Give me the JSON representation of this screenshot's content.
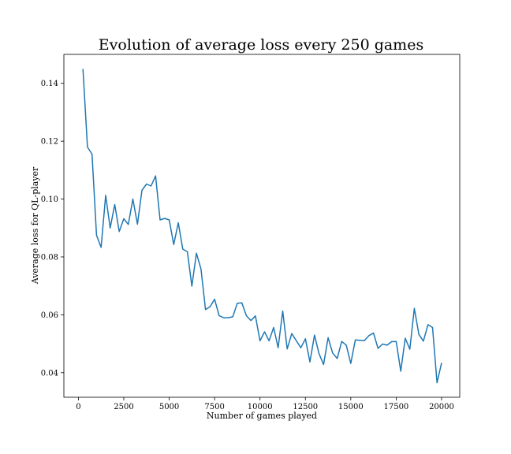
{
  "chart_data": {
    "type": "line",
    "title": "Evolution of average loss every 250 games",
    "xlabel": "Number of games played",
    "ylabel": "Average loss for QL-player",
    "xlim": [
      -800,
      21000
    ],
    "ylim": [
      0.0315,
      0.15
    ],
    "xticks": [
      0,
      2500,
      5000,
      7500,
      10000,
      12500,
      15000,
      17500,
      20000
    ],
    "xtick_labels": [
      "0",
      "2500",
      "5000",
      "7500",
      "10000",
      "12500",
      "15000",
      "17500",
      "20000"
    ],
    "yticks": [
      0.04,
      0.06,
      0.08,
      0.1,
      0.12,
      0.14
    ],
    "ytick_labels": [
      "0.04",
      "0.06",
      "0.08",
      "0.10",
      "0.12",
      "0.14"
    ],
    "grid": false,
    "line_color": "#1f77b4",
    "x": [
      250,
      500,
      750,
      1000,
      1250,
      1500,
      1750,
      2000,
      2250,
      2500,
      2750,
      3000,
      3250,
      3500,
      3750,
      4000,
      4250,
      4500,
      4750,
      5000,
      5250,
      5500,
      5750,
      6000,
      6250,
      6500,
      6750,
      7000,
      7250,
      7500,
      7750,
      8000,
      8250,
      8500,
      8750,
      9000,
      9250,
      9500,
      9750,
      10000,
      10250,
      10500,
      10750,
      11000,
      11250,
      11500,
      11750,
      12000,
      12250,
      12500,
      12750,
      13000,
      13250,
      13500,
      13750,
      14000,
      14250,
      14500,
      14750,
      15000,
      15250,
      15500,
      15750,
      16000,
      16250,
      16500,
      16750,
      17000,
      17250,
      17500,
      17750,
      18000,
      18250,
      18500,
      18750,
      19000,
      19250,
      19500,
      19750,
      20000
    ],
    "series": [
      {
        "values": [
          0.145,
          0.118,
          0.1155,
          0.0875,
          0.0833,
          0.1013,
          0.09,
          0.0981,
          0.0888,
          0.0932,
          0.0912,
          0.1,
          0.0913,
          0.103,
          0.1052,
          0.1045,
          0.108,
          0.0928,
          0.0933,
          0.0928,
          0.0843,
          0.0918,
          0.0827,
          0.0818,
          0.0699,
          0.0813,
          0.0758,
          0.0618,
          0.0628,
          0.0654,
          0.0597,
          0.059,
          0.059,
          0.0593,
          0.064,
          0.0641,
          0.0597,
          0.058,
          0.0596,
          0.051,
          0.0541,
          0.051,
          0.0556,
          0.0486,
          0.0613,
          0.0482,
          0.0535,
          0.051,
          0.0486,
          0.0517,
          0.0437,
          0.053,
          0.0466,
          0.0428,
          0.0521,
          0.0468,
          0.0449,
          0.0508,
          0.0495,
          0.0432,
          0.0513,
          0.0512,
          0.0511,
          0.0528,
          0.0537,
          0.0484,
          0.0499,
          0.0495,
          0.0507,
          0.0508,
          0.0405,
          0.0519,
          0.0481,
          0.0622,
          0.0532,
          0.0509,
          0.0566,
          0.0556,
          0.0365,
          0.0434
        ]
      }
    ]
  }
}
